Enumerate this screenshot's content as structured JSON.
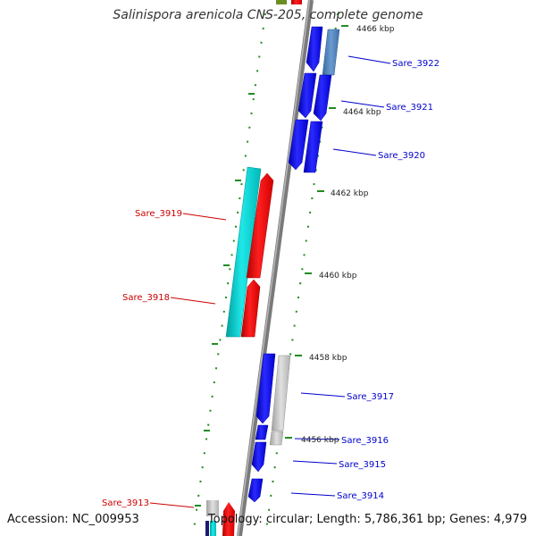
{
  "title": "Salinispora arenicola CNS-205, complete genome",
  "accession": "Accession: NC_009953",
  "summary": "Topology: circular; Length: 5,786,361 bp; Genes: 4,979",
  "colors": {
    "forward": "#0000ee",
    "reverse": "#dd0000",
    "cyan": "#00c8c8",
    "steel": "#4f81bd",
    "gray": "#b8b8b8",
    "backbone": "#7f7f7f",
    "gc": "#228b22",
    "olive": "#6b8e23"
  },
  "scale_labels": [
    {
      "id": "kbp4466",
      "text": "4466 kbp"
    },
    {
      "id": "kbp4464",
      "text": "4464 kbp"
    },
    {
      "id": "kbp4462",
      "text": "4462 kbp"
    },
    {
      "id": "kbp4460",
      "text": "4460 kbp"
    },
    {
      "id": "kbp4458",
      "text": "4458 kbp"
    },
    {
      "id": "kbp4456",
      "text": "4456 kbp"
    }
  ],
  "gene_labels": [
    {
      "id": "Sare_3922",
      "text": "Sare_3922",
      "strand": "forward"
    },
    {
      "id": "Sare_3921",
      "text": "Sare_3921",
      "strand": "forward"
    },
    {
      "id": "Sare_3920",
      "text": "Sare_3920",
      "strand": "forward"
    },
    {
      "id": "Sare_3919",
      "text": "Sare_3919",
      "strand": "reverse"
    },
    {
      "id": "Sare_3918",
      "text": "Sare_3918",
      "strand": "reverse"
    },
    {
      "id": "Sare_3917",
      "text": "Sare_3917",
      "strand": "forward"
    },
    {
      "id": "Sare_3916",
      "text": "Sare_3916",
      "strand": "forward"
    },
    {
      "id": "Sare_3915",
      "text": "Sare_3915",
      "strand": "forward"
    },
    {
      "id": "Sare_3914",
      "text": "Sare_3914",
      "strand": "forward"
    },
    {
      "id": "Sare_3913",
      "text": "Sare_3913",
      "strand": "reverse"
    }
  ]
}
